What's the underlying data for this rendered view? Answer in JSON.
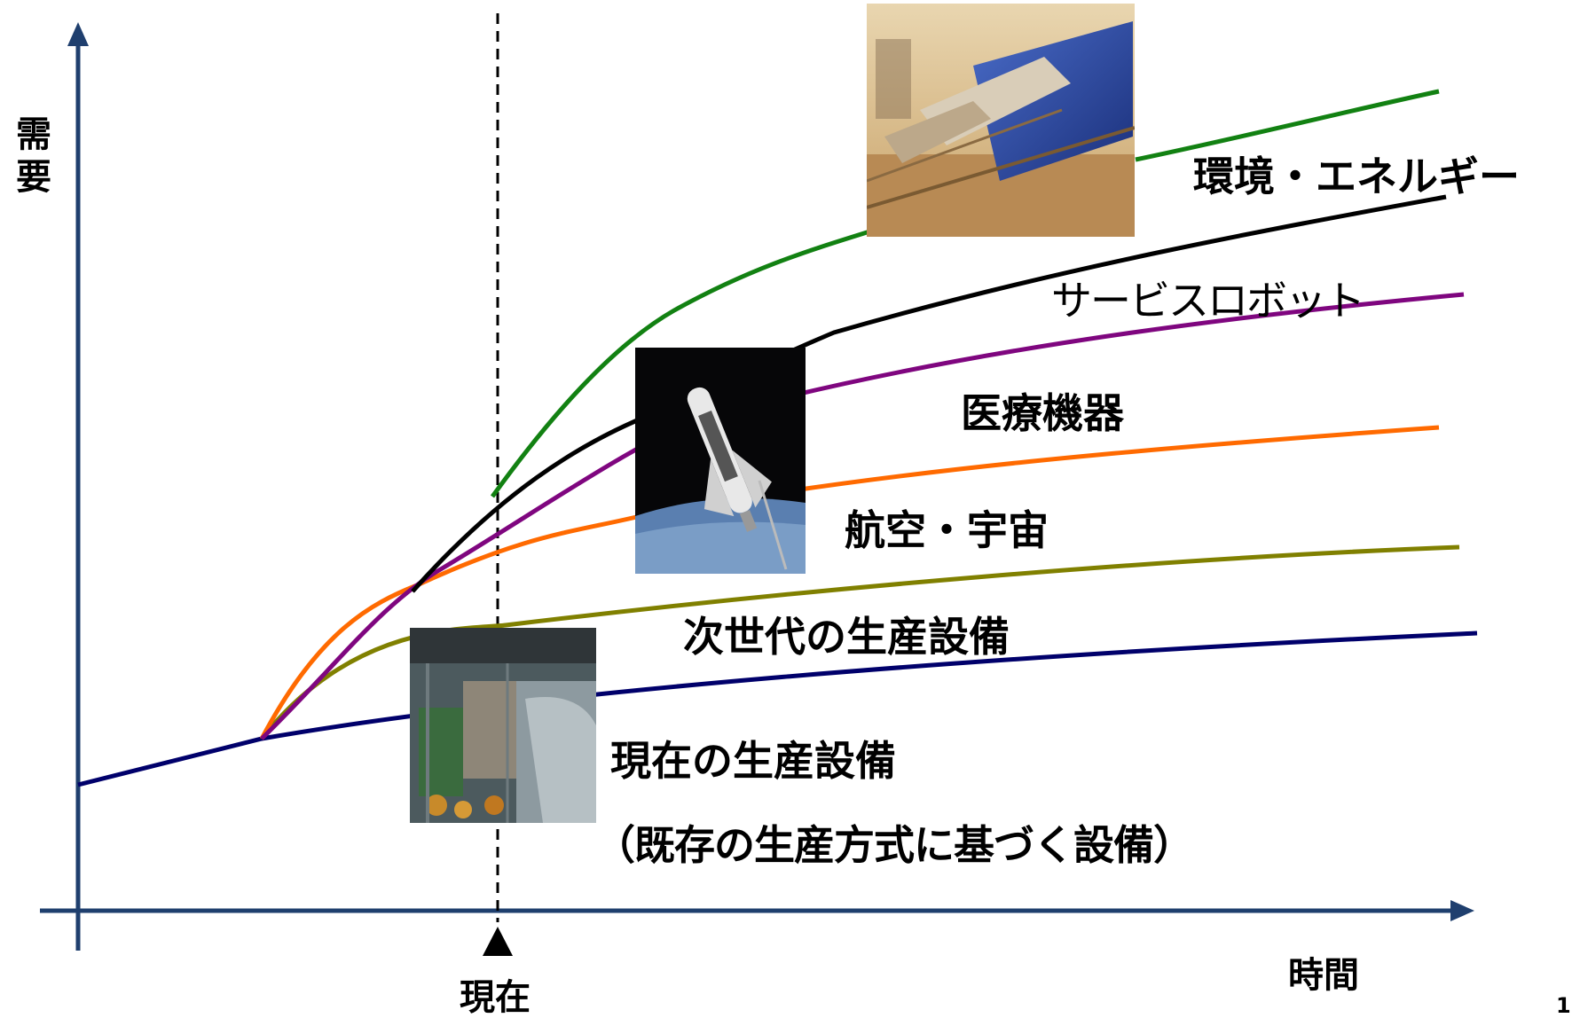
{
  "axes": {
    "y_label": "需要",
    "x_label": "時間",
    "now_label": "現在",
    "page_number": "1"
  },
  "colors": {
    "axis": "#1f3f6e",
    "environment_energy": "#128112",
    "service_robot": "#000000",
    "medical": "#7f067f",
    "aerospace": "#ff6a00",
    "next_gen": "#808000",
    "current": "#00006b"
  },
  "series": [
    {
      "key": "environment_energy",
      "label": "環境・エネルギー"
    },
    {
      "key": "service_robot",
      "label": "サービスロボット"
    },
    {
      "key": "medical",
      "label": "医療機器"
    },
    {
      "key": "aerospace",
      "label": "航空・宇宙"
    },
    {
      "key": "next_gen",
      "label": "次世代の生産設備"
    },
    {
      "key": "current",
      "label": "現在の生産設備",
      "sublabel": "（既存の生産方式に基づく設備）"
    }
  ],
  "images": [
    {
      "name": "solar-thermal-plant-photo",
      "icon": "solar-collector"
    },
    {
      "name": "space-shuttle-photo",
      "icon": "space-shuttle"
    },
    {
      "name": "factory-robot-line-photo",
      "icon": "robot-assembly-line"
    }
  ]
}
